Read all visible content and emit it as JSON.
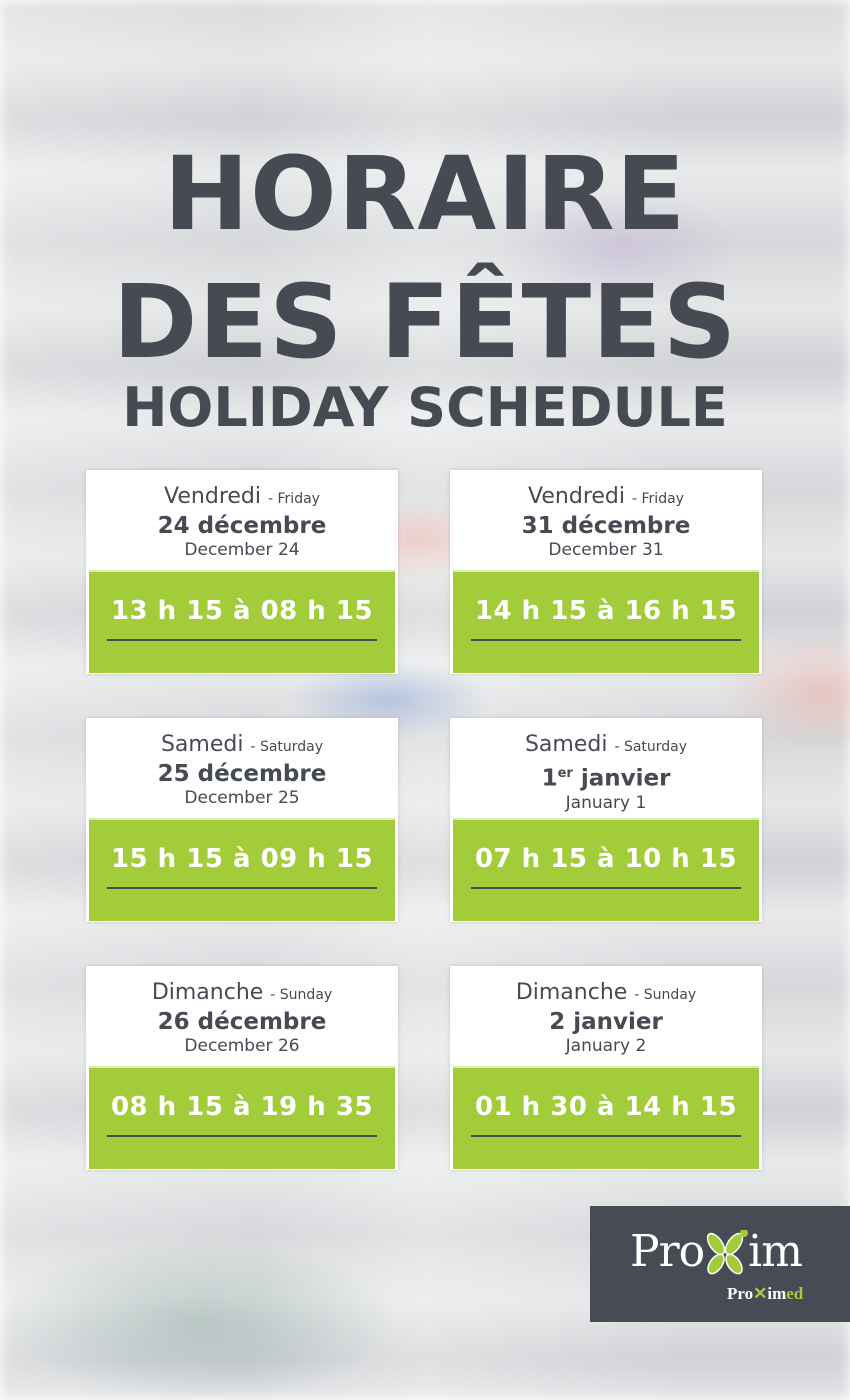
{
  "heading": {
    "line1": "HORAIRE",
    "line2": "DES FÊTES",
    "line3": "HOLIDAY SCHEDULE"
  },
  "colors": {
    "text": "#454a53",
    "accent_green": "#a2cc3a",
    "logo_bg": "#474b54"
  },
  "cards": [
    {
      "day_fr": "Vendredi",
      "day_en": "- Friday",
      "date_fr": "24 décembre",
      "date_fr_sup": "",
      "date_en": "December 24",
      "hours": "13 h 15 à 08 h 15"
    },
    {
      "day_fr": "Vendredi",
      "day_en": "- Friday",
      "date_fr": "31 décembre",
      "date_fr_sup": "",
      "date_en": "December 31",
      "hours": "14 h 15 à 16 h 15"
    },
    {
      "day_fr": "Samedi",
      "day_en": "- Saturday",
      "date_fr": "25 décembre",
      "date_fr_sup": "",
      "date_en": "December 25",
      "hours": "15 h 15 à 09 h 15"
    },
    {
      "day_fr": "Samedi",
      "day_en": "- Saturday",
      "date_fr": "1",
      "date_fr_sup": "er",
      "date_fr_rest": " janvier",
      "date_en": "January 1",
      "hours": "07 h 15 à 10 h 15"
    },
    {
      "day_fr": "Dimanche",
      "day_en": "- Sunday",
      "date_fr": "26 décembre",
      "date_fr_sup": "",
      "date_en": "December 26",
      "hours": "08 h 15 à 19 h 35"
    },
    {
      "day_fr": "Dimanche",
      "day_en": "- Sunday",
      "date_fr": "2 janvier",
      "date_fr_sup": "",
      "date_en": "January 2",
      "hours": "01 h 30 à 14 h 15"
    }
  ],
  "logo": {
    "main": "Proxim",
    "sub": "Proximed"
  }
}
